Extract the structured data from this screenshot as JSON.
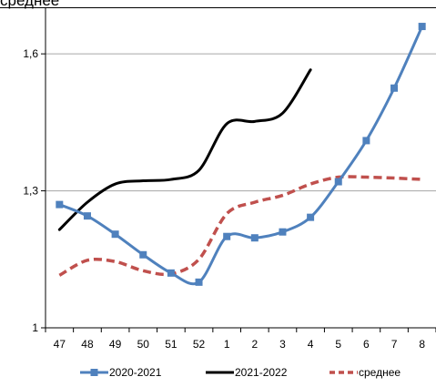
{
  "header": {
    "text": "среднее"
  },
  "chart_data": {
    "type": "line",
    "categories": [
      "47",
      "48",
      "49",
      "50",
      "51",
      "52",
      "1",
      "2",
      "3",
      "4",
      "5",
      "6",
      "7",
      "8"
    ],
    "ylim": [
      1,
      1.7
    ],
    "yticks": [
      1,
      1.3,
      1.6
    ],
    "ytick_labels": [
      "1",
      "1,3",
      "1,6"
    ],
    "grid": true,
    "legend_position": "bottom",
    "series": [
      {
        "name": "2020-2021",
        "color": "#4f81bd",
        "style": "solid-square-markers",
        "values": [
          1.27,
          1.245,
          1.205,
          1.16,
          1.12,
          1.1,
          1.2,
          1.197,
          1.21,
          1.242,
          1.32,
          1.41,
          1.525,
          1.66
        ]
      },
      {
        "name": "2021-2022",
        "color": "#000000",
        "style": "solid",
        "values": [
          1.215,
          1.275,
          1.315,
          1.322,
          1.325,
          1.345,
          1.447,
          1.452,
          1.47,
          1.565,
          null,
          null,
          null,
          null
        ]
      },
      {
        "name": "среднее",
        "color": "#c0504d",
        "style": "dashed",
        "values": [
          1.115,
          1.148,
          1.145,
          1.125,
          1.118,
          1.15,
          1.25,
          1.275,
          1.29,
          1.315,
          1.33,
          1.33,
          1.328,
          1.325
        ]
      }
    ]
  }
}
